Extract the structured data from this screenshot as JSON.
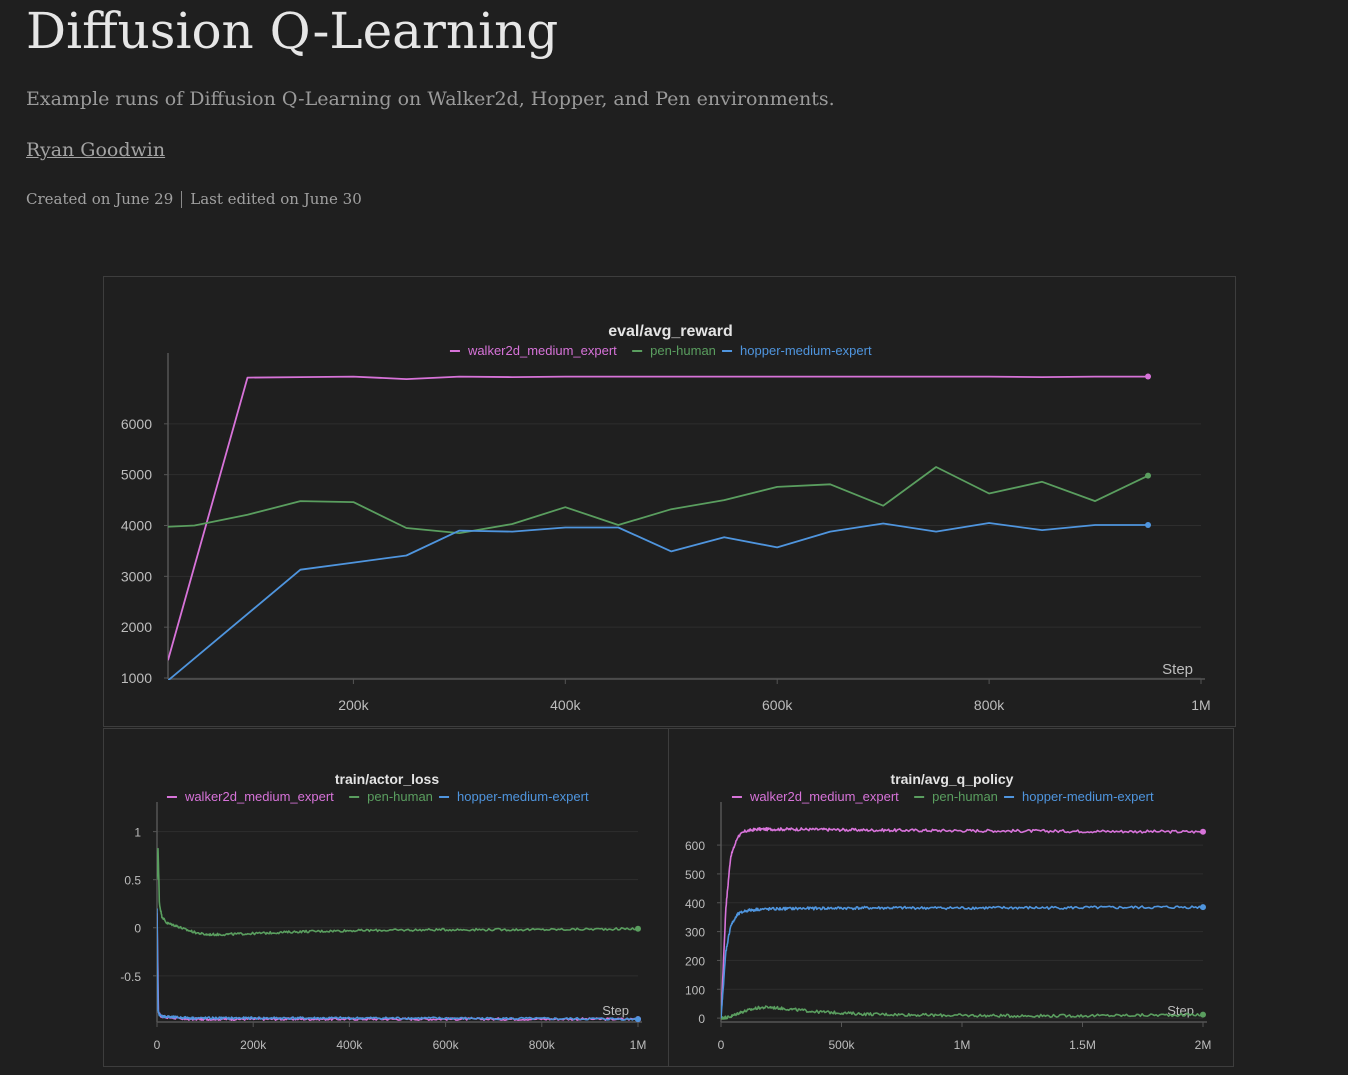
{
  "report": {
    "title": "Diffusion Q-Learning",
    "description": "Example runs of Diffusion Q-Learning on Walker2d, Hopper, and Pen environments.",
    "author": "Ryan Goodwin",
    "created": "Created on June 29",
    "edited": "Last edited on June 30"
  },
  "colors": {
    "walker2d_medium_expert": "#d773d9",
    "pen-human": "#5a9e5f",
    "hopper-medium-expert": "#4f95de",
    "grid": "#2e2e2e",
    "axis": "#555555"
  },
  "chart_data": [
    {
      "id": "eval",
      "type": "line",
      "title": "eval/avg_reward",
      "xlabel": "Step",
      "xlim": [
        25000,
        1000000
      ],
      "ylim": [
        1000,
        7000
      ],
      "xticks": [
        200000,
        400000,
        600000,
        800000,
        1000000
      ],
      "xtick_labels": [
        "200k",
        "400k",
        "600k",
        "800k",
        "1M"
      ],
      "yticks": [
        1000,
        2000,
        3000,
        4000,
        5000,
        6000
      ],
      "ytick_labels": [
        "1000",
        "2000",
        "3000",
        "4000",
        "5000",
        "6000"
      ],
      "series": [
        {
          "name": "walker2d_medium_expert",
          "x": [
            25000,
            100000,
            150000,
            200000,
            250000,
            300000,
            350000,
            400000,
            450000,
            500000,
            550000,
            600000,
            650000,
            700000,
            750000,
            800000,
            850000,
            900000,
            950000
          ],
          "y": [
            1350,
            6910,
            6920,
            6930,
            6880,
            6930,
            6920,
            6930,
            6930,
            6930,
            6930,
            6930,
            6930,
            6930,
            6930,
            6930,
            6920,
            6930,
            6930
          ]
        },
        {
          "name": "pen-human",
          "x": [
            0,
            50000,
            100000,
            150000,
            200000,
            250000,
            300000,
            350000,
            400000,
            450000,
            500000,
            550000,
            600000,
            650000,
            700000,
            750000,
            800000,
            850000,
            900000,
            950000
          ],
          "y": [
            3950,
            4000,
            4210,
            4480,
            4460,
            3950,
            3850,
            4030,
            4360,
            4010,
            4320,
            4500,
            4760,
            4810,
            4390,
            5150,
            4630,
            4860,
            4480,
            4980
          ]
        },
        {
          "name": "hopper-medium-expert",
          "x": [
            25000,
            150000,
            200000,
            250000,
            300000,
            350000,
            400000,
            450000,
            500000,
            550000,
            600000,
            650000,
            700000,
            750000,
            800000,
            850000,
            900000,
            950000
          ],
          "y": [
            950,
            3130,
            3270,
            3410,
            3900,
            3880,
            3960,
            3960,
            3490,
            3770,
            3570,
            3880,
            4040,
            3880,
            4050,
            3910,
            4010,
            4010
          ]
        }
      ]
    },
    {
      "id": "actor",
      "type": "line",
      "title": "train/actor_loss",
      "xlabel": "Step",
      "xlim": [
        0,
        1000000
      ],
      "ylim": [
        -0.97,
        1.1
      ],
      "xticks": [
        0,
        200000,
        400000,
        600000,
        800000,
        1000000
      ],
      "xtick_labels": [
        "0",
        "200k",
        "400k",
        "600k",
        "800k",
        "1M"
      ],
      "yticks": [
        -0.5,
        0,
        0.5,
        1
      ],
      "ytick_labels": [
        "-0.5",
        "0",
        "0.5",
        "1"
      ],
      "series": [
        {
          "name": "walker2d_medium_expert",
          "x": [
            0,
            3000,
            8000,
            20000,
            60000,
            200000,
            500000,
            1000000
          ],
          "y": [
            0.15,
            -0.88,
            -0.92,
            -0.93,
            -0.95,
            -0.95,
            -0.95,
            -0.95
          ]
        },
        {
          "name": "pen-human",
          "x": [
            0,
            2000,
            5000,
            10000,
            20000,
            40000,
            60000,
            80000,
            100000,
            130000,
            200000,
            300000,
            400000,
            600000,
            800000,
            1000000
          ],
          "y": [
            0.5,
            0.85,
            0.25,
            0.12,
            0.05,
            0.02,
            -0.02,
            -0.05,
            -0.07,
            -0.07,
            -0.06,
            -0.04,
            -0.03,
            -0.02,
            -0.02,
            -0.01
          ]
        },
        {
          "name": "hopper-medium-expert",
          "x": [
            0,
            2000,
            4000,
            10000,
            30000,
            80000,
            200000,
            500000,
            1000000
          ],
          "y": [
            0.2,
            -0.85,
            -0.9,
            -0.92,
            -0.93,
            -0.94,
            -0.94,
            -0.94,
            -0.95
          ]
        }
      ]
    },
    {
      "id": "q",
      "type": "line",
      "title": "train/avg_q_policy",
      "xlabel": "Step",
      "xlim": [
        0,
        2000000
      ],
      "ylim": [
        -10,
        680
      ],
      "xticks": [
        0,
        500000,
        1000000,
        1500000,
        2000000
      ],
      "xtick_labels": [
        "0",
        "500k",
        "1M",
        "1.5M",
        "2M"
      ],
      "yticks": [
        0,
        100,
        200,
        300,
        400,
        500,
        600
      ],
      "ytick_labels": [
        "0",
        "100",
        "200",
        "300",
        "400",
        "500",
        "600"
      ],
      "series": [
        {
          "name": "walker2d_medium_expert",
          "x": [
            0,
            20000,
            40000,
            70000,
            100000,
            150000,
            300000,
            600000,
            1000000,
            1500000,
            2000000
          ],
          "y": [
            0,
            380,
            560,
            630,
            648,
            655,
            655,
            652,
            650,
            648,
            646
          ]
        },
        {
          "name": "pen-human",
          "x": [
            0,
            40000,
            80000,
            150000,
            200000,
            300000,
            400000,
            600000,
            900000,
            1200000,
            1500000,
            2000000
          ],
          "y": [
            0,
            5,
            20,
            35,
            38,
            30,
            22,
            14,
            10,
            8,
            8,
            12
          ]
        },
        {
          "name": "hopper-medium-expert",
          "x": [
            0,
            20000,
            40000,
            70000,
            100000,
            150000,
            300000,
            600000,
            1000000,
            1500000,
            2000000
          ],
          "y": [
            0,
            230,
            320,
            360,
            372,
            377,
            380,
            382,
            382,
            383,
            385
          ]
        }
      ]
    }
  ]
}
